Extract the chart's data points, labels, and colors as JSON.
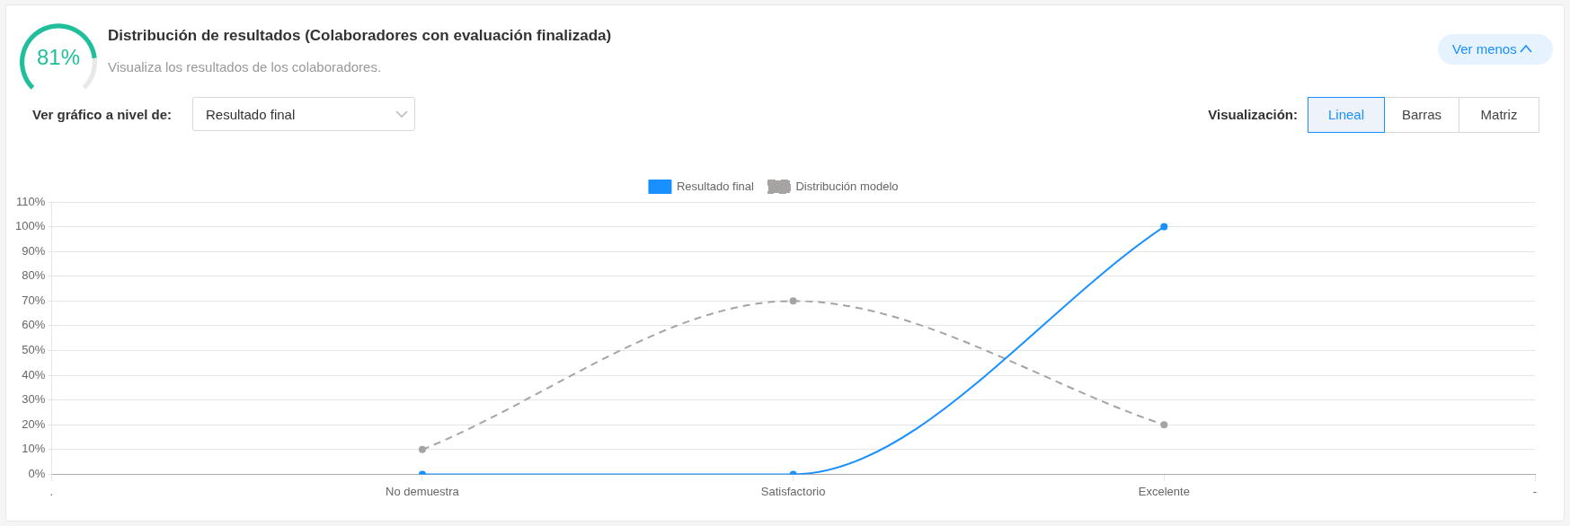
{
  "chart_data": [
    {
      "type": "donut",
      "categories": [
        null,
        null
      ],
      "values": [
        81,
        19
      ],
      "colors": [
        "#1fbf9b",
        "#e8e8e8"
      ],
      "value_labels": [
        "81%",
        null
      ]
    },
    {
      "type": "line",
      "title": "Distribución de resultados (Colaboradores con evaluación finalizada)",
      "subtitle": "Visualiza los resultados de los colaboradores.",
      "annotations": [
        "Ver menos",
        "Ver gráfico a nivel de:",
        "Resultado final",
        "Visualización:",
        "Lineal",
        "Barras",
        "Matriz"
      ],
      "categories": [
        ".",
        "No demuestra",
        "Satisfactorio",
        "Excelente",
        "-"
      ],
      "series": [
        {
          "name": "Resultado final",
          "color": "#1890ff",
          "values": [
            null,
            0,
            0,
            100,
            null
          ]
        },
        {
          "name": "Distribución modelo",
          "color": "#a6a3a3",
          "line_style": "dashed",
          "values": [
            null,
            10,
            70,
            20,
            null
          ]
        }
      ],
      "ylim": [
        0,
        110
      ],
      "yticks": [
        {
          "value": 0,
          "label": "0%"
        },
        {
          "value": 10,
          "label": "10%"
        },
        {
          "value": 20,
          "label": "20%"
        },
        {
          "value": 30,
          "label": "30%"
        },
        {
          "value": 40,
          "label": "40%"
        },
        {
          "value": 50,
          "label": "50%"
        },
        {
          "value": 60,
          "label": "60%"
        },
        {
          "value": 70,
          "label": "70%"
        },
        {
          "value": 80,
          "label": "80%"
        },
        {
          "value": 90,
          "label": "90%"
        },
        {
          "value": 100,
          "label": "100%"
        },
        {
          "value": 110,
          "label": "110%"
        }
      ],
      "grid": "y",
      "legend": "top",
      "marker": "circle",
      "line_style": "solid"
    }
  ]
}
